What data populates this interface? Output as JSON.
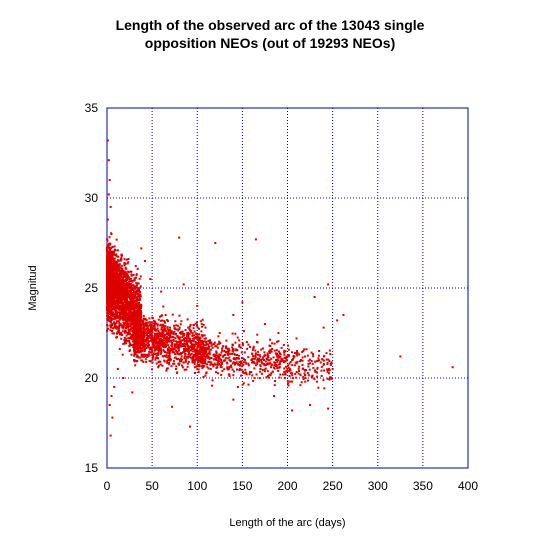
{
  "chart_data": {
    "type": "scatter",
    "title_lines": [
      "Length of the observed arc of the 13043 single",
      "opposition NEOs (out of 19293 NEOs)"
    ],
    "xlabel": "Length of the arc (days)",
    "ylabel": "Magnitud",
    "xlim": [
      0,
      400
    ],
    "ylim": [
      15,
      35
    ],
    "xticks": [
      0,
      50,
      100,
      150,
      200,
      250,
      300,
      350,
      400
    ],
    "yticks": [
      15,
      20,
      25,
      30,
      35
    ],
    "grid": true,
    "series": [
      {
        "color": "#dd0000",
        "cluster_description": "dense cloud of points with arc 0-60 days, magnitude ~18-32; sparser band 60-260 days, magnitude ~18-28",
        "points": [
          [
            1,
            33.2
          ],
          [
            2,
            32.1
          ],
          [
            3,
            31.0
          ],
          [
            2,
            30.2
          ],
          [
            4,
            29.5
          ],
          [
            1,
            28.8
          ],
          [
            5,
            28.0
          ],
          [
            3,
            27.4
          ],
          [
            6,
            26.5
          ],
          [
            8,
            26.0
          ],
          [
            10,
            25.5
          ],
          [
            12,
            25.0
          ],
          [
            15,
            24.5
          ],
          [
            2,
            24.0
          ],
          [
            5,
            23.5
          ],
          [
            9,
            23.0
          ],
          [
            14,
            22.5
          ],
          [
            20,
            22.0
          ],
          [
            25,
            21.5
          ],
          [
            30,
            21.0
          ],
          [
            12,
            20.5
          ],
          [
            18,
            20.0
          ],
          [
            8,
            19.5
          ],
          [
            5,
            19.0
          ],
          [
            3,
            18.5
          ],
          [
            6,
            17.8
          ],
          [
            4,
            16.8
          ],
          [
            28,
            19.2
          ],
          [
            35,
            24.0
          ],
          [
            40,
            23.0
          ],
          [
            45,
            22.2
          ],
          [
            50,
            21.5
          ],
          [
            55,
            20.8
          ],
          [
            48,
            25.5
          ],
          [
            42,
            26.5
          ],
          [
            38,
            27.2
          ],
          [
            60,
            24.8
          ],
          [
            65,
            23.5
          ],
          [
            70,
            22.5
          ],
          [
            75,
            21.8
          ],
          [
            80,
            27.8
          ],
          [
            85,
            25.2
          ],
          [
            90,
            22.8
          ],
          [
            95,
            21.0
          ],
          [
            100,
            24.0
          ],
          [
            105,
            23.0
          ],
          [
            110,
            22.0
          ],
          [
            115,
            20.5
          ],
          [
            120,
            27.5
          ],
          [
            125,
            22.5
          ],
          [
            130,
            21.5
          ],
          [
            135,
            20.2
          ],
          [
            140,
            23.5
          ],
          [
            145,
            19.5
          ],
          [
            150,
            24.2
          ],
          [
            155,
            22.0
          ],
          [
            160,
            21.0
          ],
          [
            165,
            27.7
          ],
          [
            170,
            20.5
          ],
          [
            175,
            23.0
          ],
          [
            180,
            21.8
          ],
          [
            185,
            19.0
          ],
          [
            190,
            22.5
          ],
          [
            195,
            20.2
          ],
          [
            200,
            21.2
          ],
          [
            205,
            19.8
          ],
          [
            210,
            22.2
          ],
          [
            215,
            21.0
          ],
          [
            220,
            20.0
          ],
          [
            225,
            18.5
          ],
          [
            230,
            24.5
          ],
          [
            235,
            21.5
          ],
          [
            240,
            22.8
          ],
          [
            245,
            25.2
          ],
          [
            250,
            20.5
          ],
          [
            255,
            23.2
          ],
          [
            262,
            23.5
          ],
          [
            325,
            21.2
          ],
          [
            383,
            20.6
          ],
          [
            92,
            17.3
          ],
          [
            72,
            18.4
          ],
          [
            140,
            18.8
          ],
          [
            205,
            18.2
          ],
          [
            245,
            18.3
          ]
        ]
      }
    ]
  }
}
